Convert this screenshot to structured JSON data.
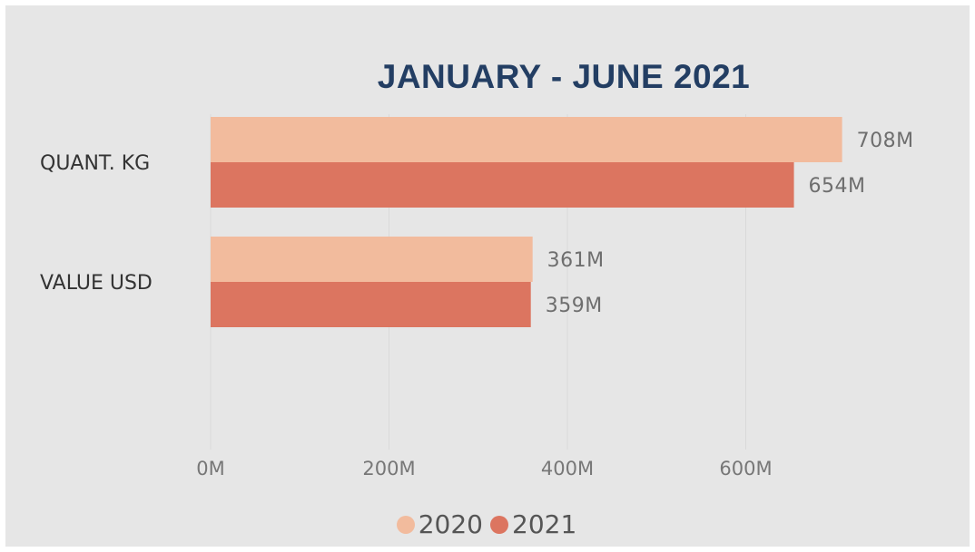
{
  "chart_data": {
    "type": "bar",
    "orientation": "horizontal",
    "title": "JANUARY - JUNE 2021",
    "categories": [
      "QUANT. KG",
      "VALUE USD"
    ],
    "series": [
      {
        "name": "2020",
        "values": [
          708,
          361
        ],
        "labels": [
          "708M",
          "361M"
        ],
        "color": "#f2bb9d"
      },
      {
        "name": "2021",
        "values": [
          654,
          359
        ],
        "labels": [
          "654M",
          "359M"
        ],
        "color": "#dc7560"
      }
    ],
    "x_ticks": [
      0,
      200,
      400,
      600
    ],
    "x_tick_labels": [
      "0M",
      "200M",
      "400M",
      "600M"
    ],
    "xlim": [
      0,
      800
    ],
    "grid": true,
    "legend_position": "bottom-center"
  }
}
